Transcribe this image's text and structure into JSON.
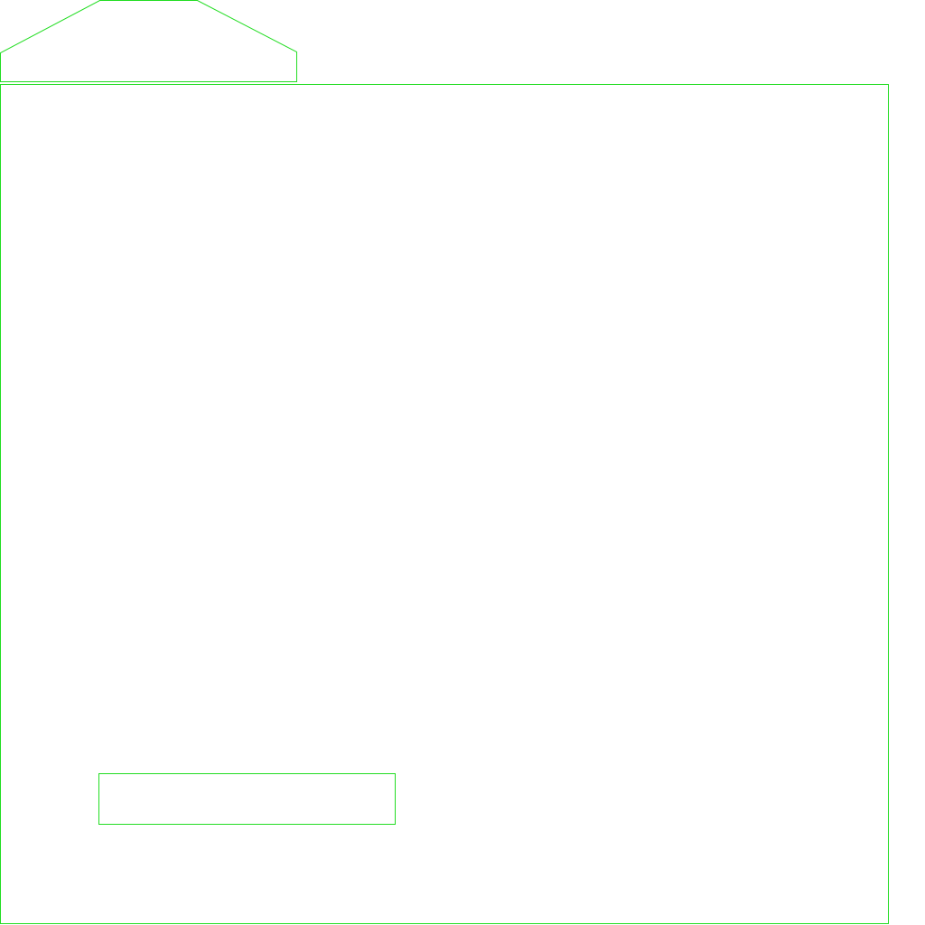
{
  "colors": {
    "background": "#ffffff",
    "stroke": "#22dd22"
  },
  "diagram": {
    "shapes": [
      {
        "name": "tab-shape",
        "kind": "polygon"
      },
      {
        "name": "main-frame",
        "kind": "rect"
      },
      {
        "name": "inner-box",
        "kind": "rect"
      }
    ]
  }
}
